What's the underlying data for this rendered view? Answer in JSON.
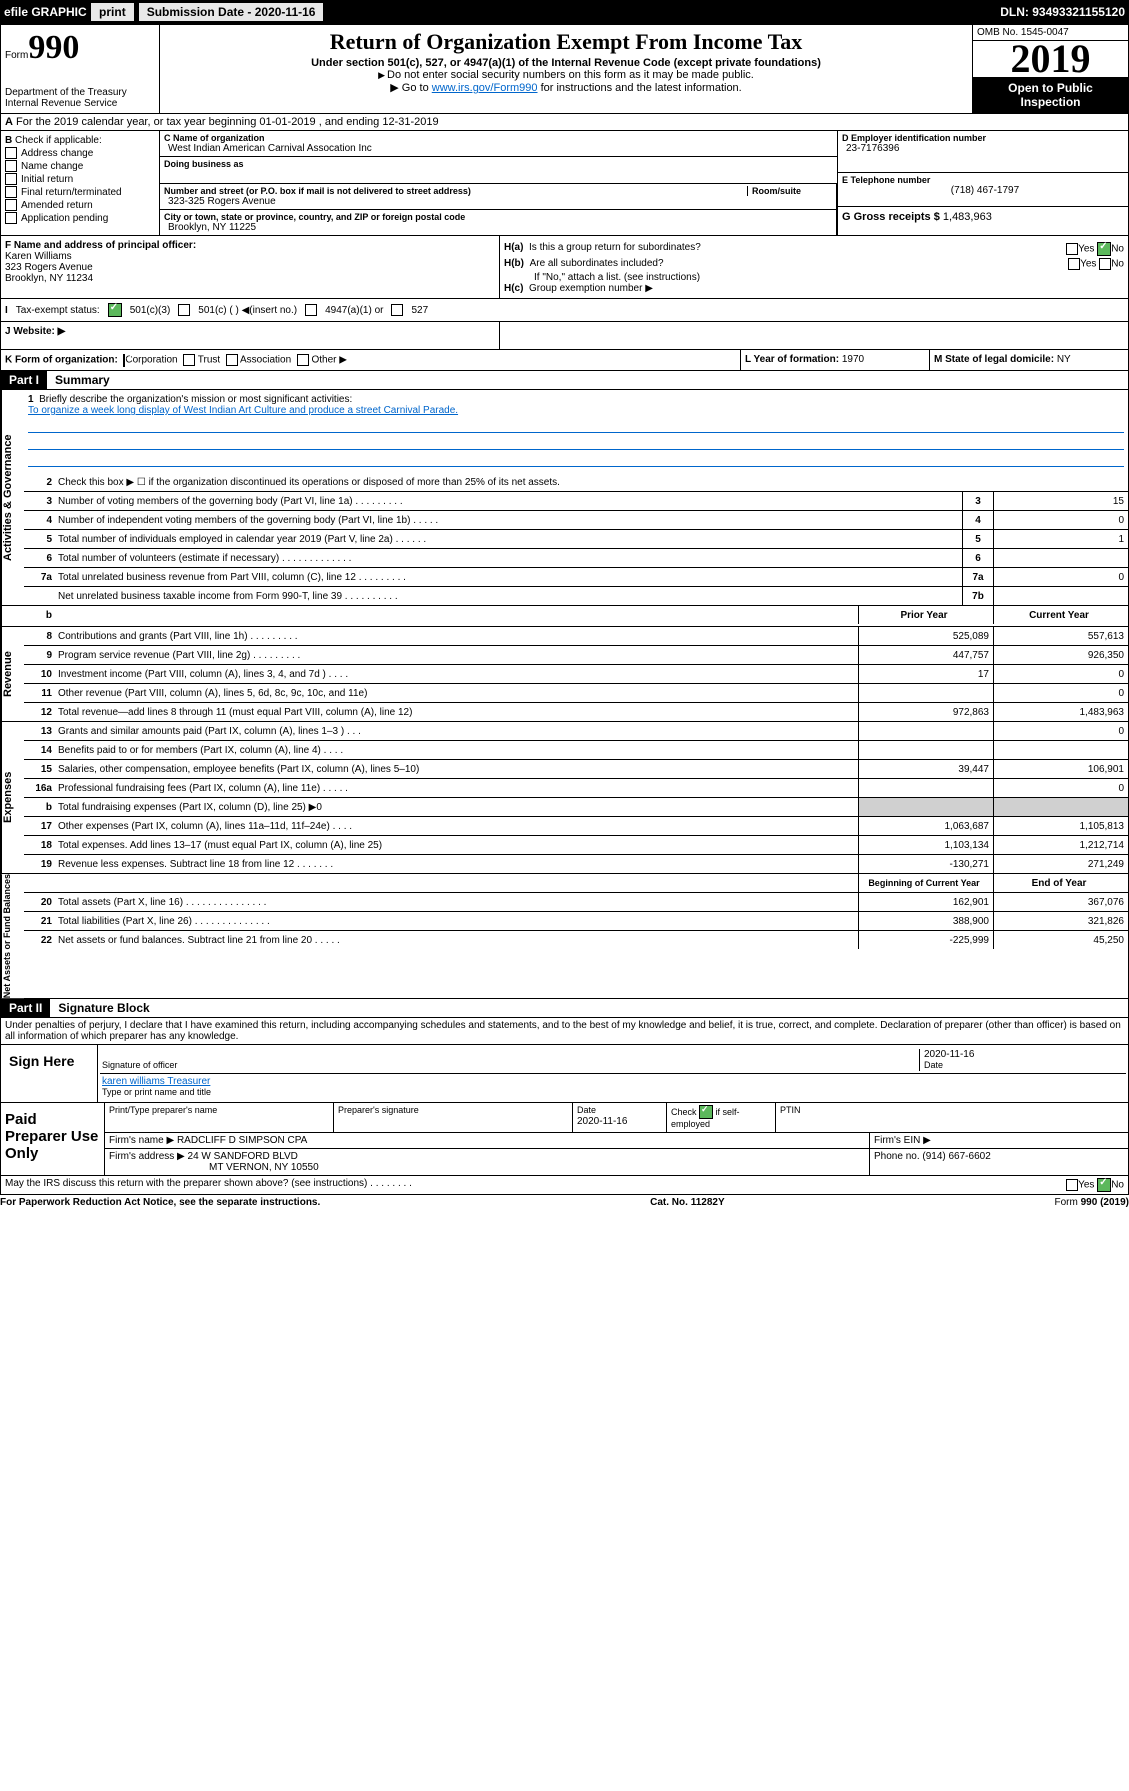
{
  "topbar": {
    "efile": "efile GRAPHIC",
    "print": "print",
    "subdate_label": "Submission Date - ",
    "subdate": "2020-11-16",
    "dln_label": "DLN: ",
    "dln": "93493321155120"
  },
  "header": {
    "form_label": "Form",
    "form_number": "990",
    "dept": "Department of the Treasury\nInternal Revenue Service",
    "title": "Return of Organization Exempt From Income Tax",
    "sub": "Under section 501(c), 527, or 4947(a)(1) of the Internal Revenue Code (except private foundations)",
    "note1": "Do not enter social security numbers on this form as it may be made public.",
    "note2_pre": "Go to ",
    "note2_link": "www.irs.gov/Form990",
    "note2_post": " for instructions and the latest information.",
    "omb": "OMB No. 1545-0047",
    "year": "2019",
    "inspect": "Open to Public Inspection"
  },
  "section_a": "For the 2019 calendar year, or tax year beginning 01-01-2019   , and ending 12-31-2019",
  "check_b": {
    "label": "Check if applicable:",
    "opts": [
      "Address change",
      "Name change",
      "Initial return",
      "Final return/terminated",
      "Amended return",
      "Application pending"
    ]
  },
  "org": {
    "name_label": "C Name of organization",
    "name": "West Indian American Carnival Assocation Inc",
    "dba_label": "Doing business as",
    "dba": "",
    "addr_label": "Number and street (or P.O. box if mail is not delivered to street address)",
    "room_label": "Room/suite",
    "addr": "323-325 Rogers Avenue",
    "city_label": "City or town, state or province, country, and ZIP or foreign postal code",
    "city": "Brooklyn, NY  11225"
  },
  "ein": {
    "label": "D Employer identification number",
    "val": "23-7176396"
  },
  "tel": {
    "label": "E Telephone number",
    "val": "(718) 467-1797"
  },
  "gross": {
    "label": "G Gross receipts $ ",
    "val": "1,483,963"
  },
  "officer": {
    "label": "F  Name and address of principal officer:",
    "name": "Karen Williams",
    "addr": "323 Rogers Avenue",
    "city": "Brooklyn, NY  11234"
  },
  "hsection": {
    "ha": "Is this a group return for subordinates?",
    "hb": "Are all subordinates included?",
    "hb_note": "If \"No,\" attach a list. (see instructions)",
    "hc": "Group exemption number ▶"
  },
  "status": {
    "label": "Tax-exempt status:",
    "o1": "501(c)(3)",
    "o2": "501(c) ( )  ◀(insert no.)",
    "o3": "4947(a)(1) or",
    "o4": "527"
  },
  "web": {
    "j": "J    Website: ▶"
  },
  "k": {
    "label": "K Form of organization:",
    "opts": [
      "Corporation",
      "Trust",
      "Association",
      "Other ▶"
    ]
  },
  "l": {
    "label": "L Year of formation: ",
    "val": "1970"
  },
  "m": {
    "label": "M State of legal domicile: ",
    "val": "NY"
  },
  "part1": {
    "hdr": "Part I",
    "title": "Summary"
  },
  "briefly": {
    "num": "1",
    "label": "Briefly describe the organization's mission or most significant activities:",
    "text": "To organize a week long display of West Indian Art Culture and produce a street Carnival Parade."
  },
  "line2": "Check this box ▶ ☐  if the organization discontinued its operations or disposed of more than 25% of its net assets.",
  "gov_rows": [
    {
      "n": "3",
      "label": "Number of voting members of the governing body (Part VI, line 1a)   .    .    .    .    .    .    .    .    .",
      "box": "3",
      "val": "15"
    },
    {
      "n": "4",
      "label": "Number of independent voting members of the governing body (Part VI, line 1b)   .    .    .    .    .",
      "box": "4",
      "val": "0"
    },
    {
      "n": "5",
      "label": "Total number of individuals employed in calendar year 2019 (Part V, line 2a)   .    .    .    .    .    .",
      "box": "5",
      "val": "1"
    },
    {
      "n": "6",
      "label": "Total number of volunteers (estimate if necessary)   .    .    .    .    .    .    .    .    .    .    .    .    .",
      "box": "6",
      "val": ""
    },
    {
      "n": "7a",
      "label": "Total unrelated business revenue from Part VIII, column (C), line 12   .    .    .    .    .    .    .    .    .",
      "box": "7a",
      "val": "0"
    },
    {
      "n": "",
      "label": "Net unrelated business taxable income from Form 990-T, line 39   .    .    .    .    .    .    .    .    .    .",
      "box": "7b",
      "val": ""
    }
  ],
  "tbl_hdr": {
    "prior": "Prior Year",
    "current": "Current Year"
  },
  "rev_rows": [
    {
      "n": "8",
      "label": "Contributions and grants (Part VIII, line 1h)   .    .    .    .    .    .    .    .    .",
      "p": "525,089",
      "c": "557,613"
    },
    {
      "n": "9",
      "label": "Program service revenue (Part VIII, line 2g)   .    .    .    .    .    .    .    .    .",
      "p": "447,757",
      "c": "926,350"
    },
    {
      "n": "10",
      "label": "Investment income (Part VIII, column (A), lines 3, 4, and 7d )   .    .    .    .",
      "p": "17",
      "c": "0"
    },
    {
      "n": "11",
      "label": "Other revenue (Part VIII, column (A), lines 5, 6d, 8c, 9c, 10c, and 11e)",
      "p": "",
      "c": "0"
    },
    {
      "n": "12",
      "label": "Total revenue—add lines 8 through 11 (must equal Part VIII, column (A), line 12)",
      "p": "972,863",
      "c": "1,483,963"
    }
  ],
  "exp_rows": [
    {
      "n": "13",
      "label": "Grants and similar amounts paid (Part IX, column (A), lines 1–3 )   .    .    .",
      "p": "",
      "c": "0"
    },
    {
      "n": "14",
      "label": "Benefits paid to or for members (Part IX, column (A), line 4)   .    .    .    .",
      "p": "",
      "c": ""
    },
    {
      "n": "15",
      "label": "Salaries, other compensation, employee benefits (Part IX, column (A), lines 5–10)",
      "p": "39,447",
      "c": "106,901"
    },
    {
      "n": "16a",
      "label": "Professional fundraising fees (Part IX, column (A), line 11e)   .    .    .    .    .",
      "p": "",
      "c": "0"
    },
    {
      "n": "b",
      "label": "Total fundraising expenses (Part IX, column (D), line 25) ▶0",
      "p": "__SHADE__",
      "c": "__SHADE__"
    },
    {
      "n": "17",
      "label": "Other expenses (Part IX, column (A), lines 11a–11d, 11f–24e)   .    .    .    .",
      "p": "1,063,687",
      "c": "1,105,813"
    },
    {
      "n": "18",
      "label": "Total expenses. Add lines 13–17 (must equal Part IX, column (A), line 25)",
      "p": "1,103,134",
      "c": "1,212,714"
    },
    {
      "n": "19",
      "label": "Revenue less expenses. Subtract line 18 from line 12   .    .    .    .    .    .    .",
      "p": "-130,271",
      "c": "271,249"
    }
  ],
  "net_hdr": {
    "begin": "Beginning of Current Year",
    "end": "End of Year"
  },
  "net_rows": [
    {
      "n": "20",
      "label": "Total assets (Part X, line 16)   .    .    .    .    .    .    .    .    .    .    .    .    .    .    .",
      "p": "162,901",
      "c": "367,076"
    },
    {
      "n": "21",
      "label": "Total liabilities (Part X, line 26)   .    .    .    .    .    .    .    .    .    .    .    .    .    .",
      "p": "388,900",
      "c": "321,826"
    },
    {
      "n": "22",
      "label": "Net assets or fund balances. Subtract line 21 from line 20   .    .    .    .    .",
      "p": "-225,999",
      "c": "45,250"
    }
  ],
  "part2": {
    "hdr": "Part II",
    "title": "Signature Block"
  },
  "decl": "Under penalties of perjury, I declare that I have examined this return, including accompanying schedules and statements, and to the best of my knowledge and belief, it is true, correct, and complete. Declaration of preparer (other than officer) is based on all information of which preparer has any knowledge.",
  "sign": {
    "here": "Sign Here",
    "sig_label": "Signature of officer",
    "date": "2020-11-16",
    "date_label": "Date",
    "name": "karen williams Treasurer",
    "name_label": "Type or print name and title"
  },
  "paid": {
    "title": "Paid Preparer Use Only",
    "prep_label": "Print/Type preparer's name",
    "sig_label": "Preparer's signature",
    "date_label": "Date",
    "date": "2020-11-16",
    "check_label": "Check ☑ if self-employed",
    "ptin_label": "PTIN",
    "firm_label": "Firm's name    ▶",
    "firm": "RADCLIFF D SIMPSON CPA",
    "ein_label": "Firm's EIN ▶",
    "addr_label": "Firm's address ▶",
    "addr1": "24 W SANDFORD BLVD",
    "addr2": "MT VERNON, NY  10550",
    "phone_label": "Phone no. ",
    "phone": "(914) 667-6602"
  },
  "discuss": "May the IRS discuss this return with the preparer shown above? (see instructions)     .    .    .    .    .    .    .    .",
  "footer": {
    "left": "For Paperwork Reduction Act Notice, see the separate instructions.",
    "mid": "Cat. No. 11282Y",
    "right": "Form 990 (2019)"
  },
  "vtabs": {
    "gov": "Activities & Governance",
    "rev": "Revenue",
    "exp": "Expenses",
    "net": "Net Assets or Fund Balances"
  }
}
